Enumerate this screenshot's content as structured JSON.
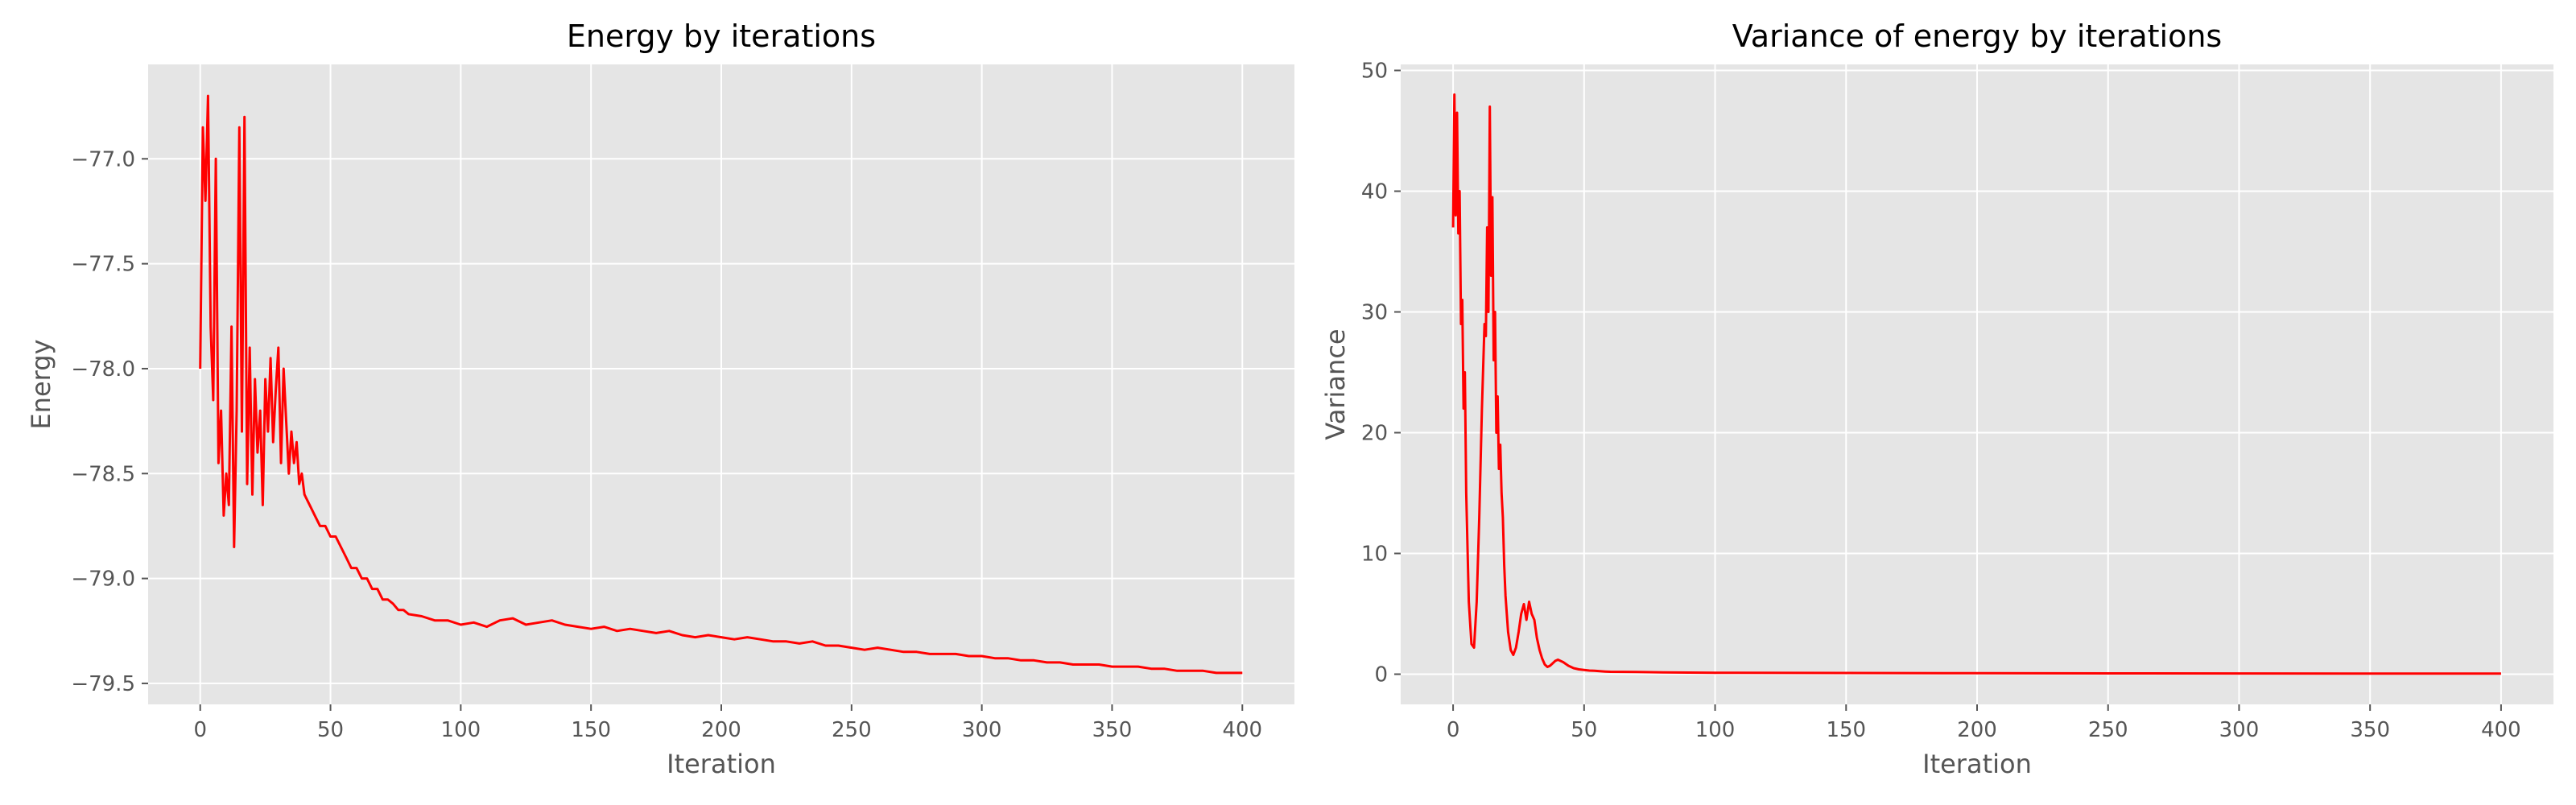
{
  "chart_data": [
    {
      "type": "line",
      "title": "Energy by iterations",
      "xlabel": "Iteration",
      "ylabel": "Energy",
      "xlim": [
        -20,
        420
      ],
      "ylim": [
        -79.6,
        -76.55
      ],
      "xticks": [
        0,
        50,
        100,
        150,
        200,
        250,
        300,
        350,
        400
      ],
      "yticks": [
        -79.5,
        -79.0,
        -78.5,
        -78.0,
        -77.5,
        -77.0
      ],
      "xtick_labels": [
        "0",
        "50",
        "100",
        "150",
        "200",
        "250",
        "300",
        "350",
        "400"
      ],
      "ytick_labels": [
        "−79.5",
        "−79.0",
        "−78.5",
        "−78.0",
        "−77.5",
        "−77.0"
      ],
      "grid": true,
      "series_color": "#ff0000",
      "series": [
        {
          "x": [
            0,
            1,
            2,
            3,
            4,
            5,
            6,
            7,
            8,
            9,
            10,
            11,
            12,
            13,
            14,
            15,
            16,
            17,
            18,
            19,
            20,
            21,
            22,
            23,
            24,
            25,
            26,
            27,
            28,
            29,
            30,
            31,
            32,
            33,
            34,
            35,
            36,
            37,
            38,
            39,
            40,
            42,
            44,
            46,
            48,
            50,
            52,
            54,
            56,
            58,
            60,
            62,
            64,
            66,
            68,
            70,
            72,
            74,
            76,
            78,
            80,
            85,
            90,
            95,
            100,
            105,
            110,
            115,
            120,
            125,
            130,
            135,
            140,
            145,
            150,
            155,
            160,
            165,
            170,
            175,
            180,
            185,
            190,
            195,
            200,
            205,
            210,
            215,
            220,
            225,
            230,
            235,
            240,
            245,
            250,
            255,
            260,
            265,
            270,
            275,
            280,
            285,
            290,
            295,
            300,
            305,
            310,
            315,
            320,
            325,
            330,
            335,
            340,
            345,
            350,
            355,
            360,
            365,
            370,
            375,
            380,
            385,
            390,
            395,
            400
          ],
          "y": [
            -78.0,
            -76.85,
            -77.2,
            -76.7,
            -77.8,
            -78.15,
            -77.0,
            -78.45,
            -78.2,
            -78.7,
            -78.5,
            -78.65,
            -77.8,
            -78.85,
            -78.2,
            -76.85,
            -78.3,
            -76.8,
            -78.55,
            -77.9,
            -78.6,
            -78.05,
            -78.4,
            -78.2,
            -78.65,
            -78.05,
            -78.3,
            -77.95,
            -78.35,
            -78.1,
            -77.9,
            -78.45,
            -78.0,
            -78.25,
            -78.5,
            -78.3,
            -78.45,
            -78.35,
            -78.55,
            -78.5,
            -78.6,
            -78.65,
            -78.7,
            -78.75,
            -78.75,
            -78.8,
            -78.8,
            -78.85,
            -78.9,
            -78.95,
            -78.95,
            -79.0,
            -79.0,
            -79.05,
            -79.05,
            -79.1,
            -79.1,
            -79.12,
            -79.15,
            -79.15,
            -79.17,
            -79.18,
            -79.2,
            -79.2,
            -79.22,
            -79.21,
            -79.23,
            -79.2,
            -79.19,
            -79.22,
            -79.21,
            -79.2,
            -79.22,
            -79.23,
            -79.24,
            -79.23,
            -79.25,
            -79.24,
            -79.25,
            -79.26,
            -79.25,
            -79.27,
            -79.28,
            -79.27,
            -79.28,
            -79.29,
            -79.28,
            -79.29,
            -79.3,
            -79.3,
            -79.31,
            -79.3,
            -79.32,
            -79.32,
            -79.33,
            -79.34,
            -79.33,
            -79.34,
            -79.35,
            -79.35,
            -79.36,
            -79.36,
            -79.36,
            -79.37,
            -79.37,
            -79.38,
            -79.38,
            -79.39,
            -79.39,
            -79.4,
            -79.4,
            -79.41,
            -79.41,
            -79.41,
            -79.42,
            -79.42,
            -79.42,
            -79.43,
            -79.43,
            -79.44,
            -79.44,
            -79.44,
            -79.45,
            -79.45,
            -79.45
          ]
        }
      ]
    },
    {
      "type": "line",
      "title": "Variance of energy by iterations",
      "xlabel": "Iteration",
      "ylabel": "Variance",
      "xlim": [
        -20,
        420
      ],
      "ylim": [
        -2.5,
        50.5
      ],
      "xticks": [
        0,
        50,
        100,
        150,
        200,
        250,
        300,
        350,
        400
      ],
      "yticks": [
        0,
        10,
        20,
        30,
        40,
        50
      ],
      "xtick_labels": [
        "0",
        "50",
        "100",
        "150",
        "200",
        "250",
        "300",
        "350",
        "400"
      ],
      "ytick_labels": [
        "0",
        "10",
        "20",
        "30",
        "40",
        "50"
      ],
      "grid": true,
      "series_color": "#ff0000",
      "series": [
        {
          "x": [
            0,
            0.5,
            1,
            1.5,
            2,
            2.5,
            3,
            3.5,
            4,
            4.5,
            5,
            6,
            7,
            8,
            9,
            10,
            11,
            12,
            12.5,
            13,
            13.5,
            14,
            14.5,
            15,
            15.5,
            16,
            16.5,
            17,
            17.5,
            18,
            18.5,
            19,
            19.5,
            20,
            21,
            22,
            23,
            24,
            25,
            26,
            27,
            28,
            29,
            30,
            31,
            32,
            33,
            34,
            35,
            36,
            37,
            38,
            39,
            40,
            42,
            44,
            46,
            48,
            50,
            52,
            54,
            56,
            58,
            60,
            70,
            80,
            90,
            100,
            150,
            200,
            250,
            300,
            350,
            400
          ],
          "y": [
            37.0,
            48.0,
            38.0,
            46.5,
            36.5,
            40.0,
            29.0,
            31.0,
            22.0,
            25.0,
            15.0,
            6.0,
            2.5,
            2.2,
            6.0,
            13.0,
            22.0,
            29.0,
            28.0,
            37.0,
            30.0,
            47.0,
            33.0,
            39.5,
            26.0,
            30.0,
            20.0,
            23.0,
            17.0,
            19.0,
            15.0,
            13.0,
            9.0,
            6.5,
            3.5,
            2.0,
            1.6,
            2.2,
            3.5,
            5.0,
            5.8,
            4.5,
            6.0,
            5.0,
            4.5,
            3.0,
            2.0,
            1.3,
            0.8,
            0.6,
            0.7,
            0.9,
            1.1,
            1.2,
            1.0,
            0.7,
            0.5,
            0.4,
            0.35,
            0.3,
            0.28,
            0.25,
            0.22,
            0.2,
            0.18,
            0.15,
            0.13,
            0.12,
            0.1,
            0.08,
            0.07,
            0.06,
            0.05,
            0.05
          ]
        }
      ]
    }
  ]
}
